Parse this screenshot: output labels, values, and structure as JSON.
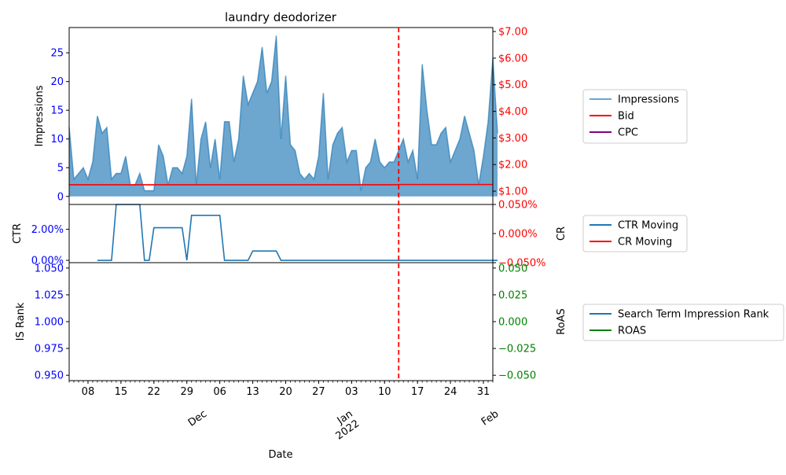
{
  "chart_data": {
    "type": "area",
    "title": "laundry deodorizer",
    "xlabel": "Date",
    "x_start": "2021-11-04",
    "x_end": "2022-02-02",
    "x_tick_labels": [
      {
        "date": "2021-11-08",
        "label": "08"
      },
      {
        "date": "2021-11-15",
        "label": "15"
      },
      {
        "date": "2021-11-22",
        "label": "22"
      },
      {
        "date": "2021-11-29",
        "label": "29"
      },
      {
        "date": "2021-12-06",
        "label": "06"
      },
      {
        "date": "2021-12-13",
        "label": "13"
      },
      {
        "date": "2021-12-20",
        "label": "20"
      },
      {
        "date": "2021-12-27",
        "label": "27"
      },
      {
        "date": "2022-01-03",
        "label": "03"
      },
      {
        "date": "2022-01-10",
        "label": "10"
      },
      {
        "date": "2022-01-17",
        "label": "17"
      },
      {
        "date": "2022-01-24",
        "label": "24"
      },
      {
        "date": "2022-01-31",
        "label": "31"
      }
    ],
    "x_major_labels": [
      {
        "date": "2021-12-01",
        "label": "Dec"
      },
      {
        "date": "2022-01-01",
        "label": "Jan\n2022"
      },
      {
        "date": "2022-02-01",
        "label": "Feb"
      }
    ],
    "vline_date": "2022-01-13",
    "panels": [
      {
        "ylabel": "Impressions",
        "ylabel_right": "",
        "yticks": [
          "0",
          "5",
          "10",
          "15",
          "20",
          "25"
        ],
        "ytick_values": [
          0,
          5,
          10,
          15,
          20,
          25
        ],
        "yticks_right": [
          "$1.00",
          "$2.00",
          "$3.00",
          "$4.00",
          "$5.00",
          "$6.00",
          "$7.00"
        ],
        "ytick_right_values": [
          1,
          2,
          3,
          4,
          5,
          6,
          7
        ],
        "ylim": [
          -1.4,
          29.4
        ],
        "ylim_right": [
          0.5,
          7.15
        ],
        "series": [
          {
            "name": "Impressions",
            "color": "#1f77b4",
            "start": "2021-11-04",
            "values": [
              12,
              3,
              4,
              5,
              3,
              6,
              14,
              11,
              12,
              3,
              4,
              4,
              7,
              2,
              2,
              4,
              1,
              1,
              1,
              9,
              7,
              2,
              5,
              5,
              4,
              7,
              17,
              2,
              10,
              13,
              5,
              10,
              3,
              13,
              13,
              6,
              10,
              21,
              16,
              18,
              20,
              26,
              18,
              20,
              28,
              10,
              21,
              9,
              8,
              4,
              3,
              4,
              3,
              7,
              18,
              3,
              9,
              11,
              12,
              6,
              8,
              8,
              1,
              5,
              6,
              10,
              6,
              5,
              6,
              6,
              8,
              10,
              6,
              8,
              3,
              23,
              15,
              9,
              9,
              11,
              12,
              6,
              8,
              10,
              14,
              11,
              8,
              2,
              7,
              13,
              24,
              11
            ]
          },
          {
            "name": "Bid",
            "color": "#ff0000",
            "axis": "right",
            "start": "2021-11-04",
            "values": [
              1.24,
              1.24,
              1.24,
              1.24,
              1.24,
              1.24,
              1.24,
              1.24,
              1.24,
              1.24,
              1.24,
              1.24,
              1.24,
              1.24,
              1.24,
              1.24,
              1.24,
              1.24,
              1.24,
              1.24,
              1.24,
              1.24,
              1.24,
              1.24,
              1.24,
              1.24,
              1.24,
              1.24,
              1.24,
              1.24,
              1.24,
              1.24,
              1.24,
              1.24,
              1.24,
              1.24,
              1.24,
              1.24,
              1.24,
              1.24,
              1.24,
              1.24,
              1.24,
              1.24,
              1.24,
              1.24,
              1.24,
              1.24,
              1.24,
              1.24,
              1.24,
              1.24,
              1.24,
              1.24,
              1.24,
              1.24,
              1.24,
              1.24,
              1.24,
              1.24,
              1.24,
              1.24,
              1.24,
              1.24,
              1.24,
              1.24,
              1.24,
              1.24,
              1.24,
              1.24,
              1.25,
              1.25,
              1.25,
              1.25,
              1.25,
              1.25,
              1.25,
              1.25,
              1.25,
              1.25,
              1.25,
              1.25,
              1.25,
              1.25,
              1.25,
              1.25,
              1.25,
              1.25,
              1.25,
              1.25,
              1.25
            ]
          },
          {
            "name": "CPC",
            "color": "#800080",
            "axis": "right",
            "values": []
          }
        ]
      },
      {
        "ylabel": "CTR",
        "ylabel_right": "CR",
        "yticks": [
          "0.00%",
          "2.00%"
        ],
        "ytick_values": [
          0,
          2
        ],
        "yticks_right": [
          "−0.050%",
          "0.000%",
          "0.050%"
        ],
        "ytick_right_values": [
          -0.05,
          0,
          0.05
        ],
        "ylim": [
          -0.15,
          3.6
        ],
        "ylim_right": [
          -0.05,
          0.05
        ],
        "series": [
          {
            "name": "CTR Moving",
            "color": "#1f77b4",
            "start": "2021-11-10",
            "values": [
              0,
              0,
              0,
              0,
              3.6,
              3.6,
              3.6,
              3.6,
              3.6,
              3.6,
              0,
              0,
              2.1,
              2.1,
              2.1,
              2.1,
              2.1,
              2.1,
              2.1,
              0,
              2.9,
              2.9,
              2.9,
              2.9,
              2.9,
              2.9,
              2.9,
              0,
              0,
              0,
              0,
              0,
              0,
              0.6,
              0.6,
              0.6,
              0.6,
              0.6,
              0.6,
              0,
              0,
              0,
              0,
              0,
              0,
              0,
              0,
              0,
              0,
              0,
              0,
              0,
              0,
              0,
              0,
              0,
              0,
              0,
              0,
              0,
              0,
              0,
              0,
              0,
              0,
              0,
              0,
              0,
              0,
              0,
              0,
              0,
              0,
              0,
              0,
              0,
              0,
              0,
              0,
              0,
              0,
              0,
              0,
              0,
              0,
              0
            ]
          },
          {
            "name": "CR Moving",
            "color": "#ff0000",
            "axis": "right",
            "values": []
          }
        ]
      },
      {
        "ylabel": "IS Rank",
        "ylabel_right": "RoAS",
        "yticks": [
          "0.950",
          "0.975",
          "1.000",
          "1.025",
          "1.050"
        ],
        "ytick_values": [
          0.95,
          0.975,
          1.0,
          1.025,
          1.05
        ],
        "yticks_right": [
          "−0.050",
          "−0.025",
          "0.000",
          "0.025",
          "0.050"
        ],
        "ytick_right_values": [
          -0.05,
          -0.025,
          0,
          0.025,
          0.05
        ],
        "ylim": [
          0.945,
          1.055
        ],
        "ylim_right": [
          -0.055,
          0.055
        ],
        "series": [
          {
            "name": "Search Term Impression Rank",
            "color": "#1f77b4",
            "values": []
          },
          {
            "name": "ROAS",
            "color": "#008000",
            "axis": "right",
            "values": []
          }
        ]
      }
    ],
    "legends": [
      {
        "entries": [
          {
            "label": "Impressions",
            "color": "#1f77b4",
            "alpha": 0.65
          },
          {
            "label": "Bid",
            "color": "#ff0000",
            "alpha": 1
          },
          {
            "label": "CPC",
            "color": "#800080",
            "alpha": 1
          }
        ]
      },
      {
        "entries": [
          {
            "label": "CTR Moving",
            "color": "#1f77b4",
            "alpha": 1
          },
          {
            "label": "CR Moving",
            "color": "#ff0000",
            "alpha": 1
          }
        ]
      },
      {
        "entries": [
          {
            "label": "Search Term Impression Rank",
            "color": "#1f77b4",
            "alpha": 1
          },
          {
            "label": "ROAS",
            "color": "#008000",
            "alpha": 1
          }
        ]
      }
    ],
    "colors": {
      "left_axis": "#0000ff",
      "panel1_right_axis": "#ff0000",
      "panel2_right_axis": "#ff0000",
      "panel3_right_axis": "#008000",
      "vline": "#ff0000"
    }
  }
}
